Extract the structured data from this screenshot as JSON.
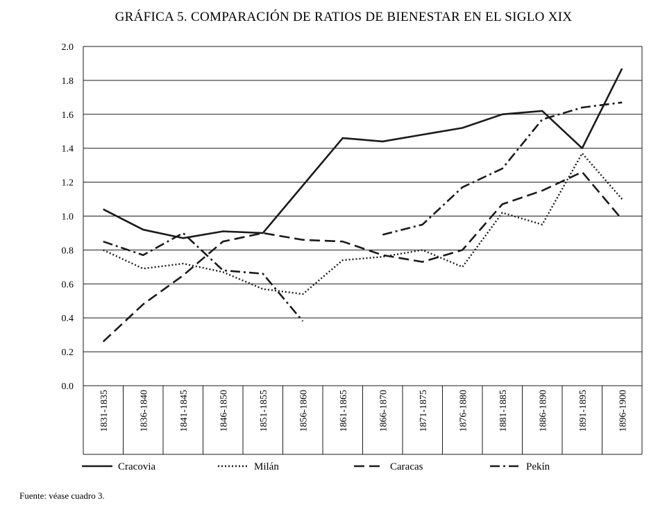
{
  "chart_data": {
    "type": "line",
    "title": "GRÁFICA 5. COMPARACIÓN DE RATIOS DE BIENESTAR EN EL SIGLO XIX",
    "xlabel": "",
    "ylabel": "",
    "categories": [
      "1831-1835",
      "1836-1840",
      "1841-1845",
      "1846-1850",
      "1851-1855",
      "1856-1860",
      "1861-1865",
      "1866-1870",
      "1871-1875",
      "1876-1880",
      "1881-1885",
      "1886-1890",
      "1891-1895",
      "1896-1900"
    ],
    "ylim": [
      0.0,
      2.0
    ],
    "yticks": [
      "0.0",
      "0.2",
      "0.4",
      "0.6",
      "0.8",
      "1.0",
      "1.2",
      "1.4",
      "1.6",
      "1.8",
      "2.0"
    ],
    "grid": true,
    "legend_position": "bottom",
    "series": [
      {
        "name": "Cracovia",
        "style": "solid",
        "values": [
          1.04,
          0.92,
          0.87,
          0.91,
          0.9,
          1.18,
          1.46,
          1.44,
          1.48,
          1.52,
          1.6,
          1.62,
          1.4,
          1.87
        ]
      },
      {
        "name": "Milán",
        "style": "dotted",
        "values": [
          0.8,
          0.69,
          0.72,
          0.67,
          0.57,
          0.54,
          0.74,
          0.76,
          0.8,
          0.7,
          1.02,
          0.95,
          1.37,
          1.1
        ]
      },
      {
        "name": "Caracas",
        "style": "dashed",
        "values": [
          0.26,
          0.48,
          0.65,
          0.85,
          0.9,
          0.86,
          0.85,
          0.77,
          0.73,
          0.8,
          1.07,
          1.15,
          1.26,
          0.98
        ]
      },
      {
        "name": "Pekín",
        "style": "dashdot",
        "values": [
          0.85,
          0.77,
          0.9,
          0.68,
          0.66,
          0.38,
          null,
          0.89,
          0.95,
          1.17,
          1.28,
          1.57,
          1.64,
          1.67
        ]
      }
    ],
    "line_color": "#1a1a1a",
    "grid_color": "#1a1a1a"
  },
  "source_note": "Fuente: véase cuadro 3."
}
